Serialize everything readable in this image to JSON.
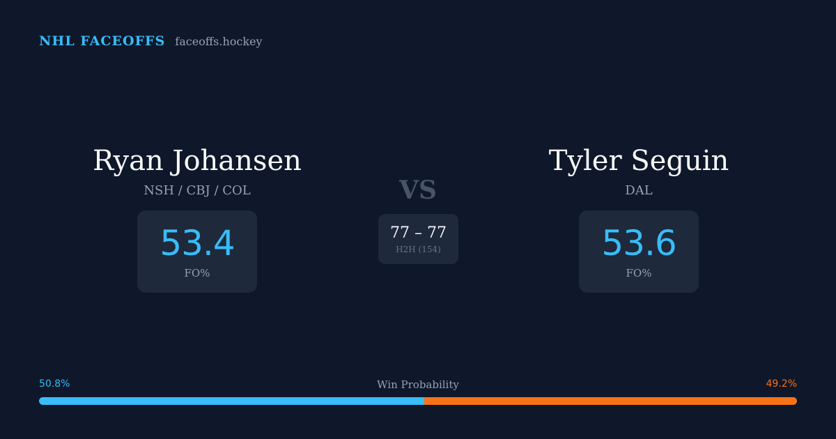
{
  "header": {
    "brand": "NHL FACEOFFS",
    "domain": "faceoffs.hockey"
  },
  "players": [
    {
      "name": "Ryan Johansen",
      "teams": "NSH / CBJ / COL",
      "fo_pct": "53.4",
      "fo_label": "FO%"
    },
    {
      "name": "Tyler Seguin",
      "teams": "DAL",
      "fo_pct": "53.6",
      "fo_label": "FO%"
    }
  ],
  "matchup": {
    "vs": "VS",
    "h2h_score": "77 – 77",
    "h2h_label": "H2H (154)"
  },
  "win_probability": {
    "title": "Win Probability",
    "left_label": "50.8%",
    "right_label": "49.2%",
    "left_fraction": 0.508
  },
  "colors": {
    "background": "#0f172a",
    "card": "#1e293b",
    "accent_blue": "#38bdf8",
    "accent_orange": "#f97316",
    "muted": "#94a3b8"
  }
}
